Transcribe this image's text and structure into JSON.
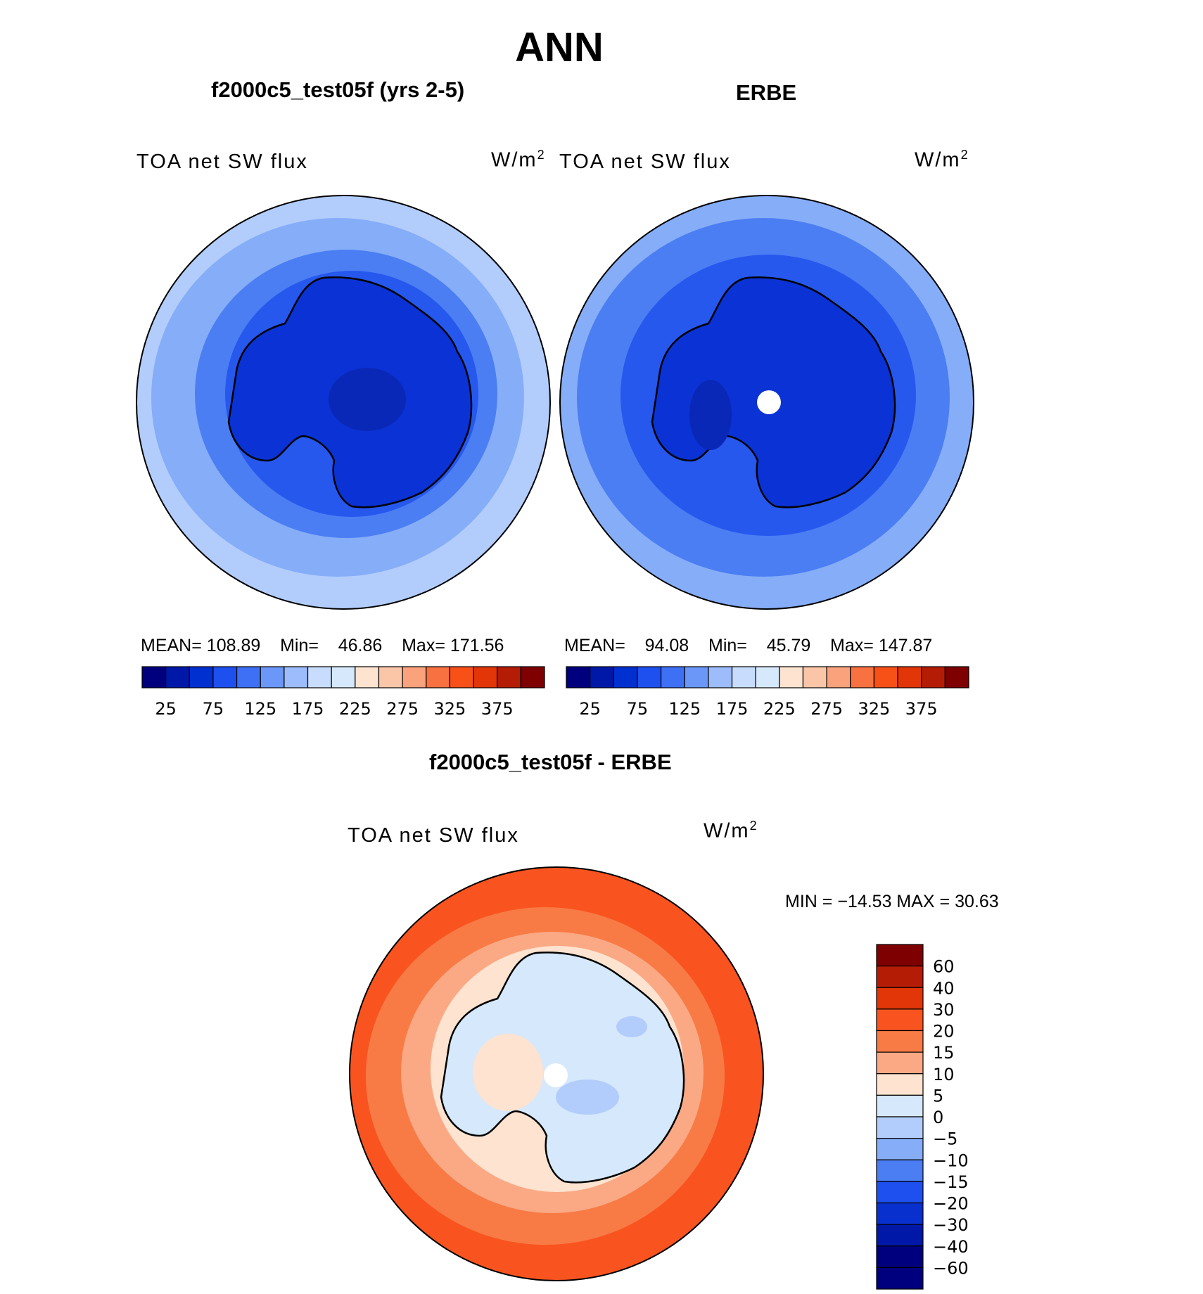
{
  "title": "ANN",
  "panels": {
    "left": {
      "title": "f2000c5_test05f (yrs 2-5)",
      "variable": "TOA net SW flux",
      "units": "W/m",
      "units_sup": "2",
      "stats": {
        "mean_label": "MEAN=",
        "mean": "108.89",
        "min_label": "Min=",
        "min": "46.86",
        "max_label": "Max=",
        "max": "171.56"
      }
    },
    "right": {
      "title": "ERBE",
      "variable": "TOA net SW flux",
      "units": "W/m",
      "units_sup": "2",
      "stats": {
        "mean_label": "MEAN=",
        "mean": "94.08",
        "min_label": "Min=",
        "min": "45.79",
        "max_label": "Max=",
        "max": "147.87"
      }
    },
    "diff": {
      "title": "f2000c5_test05f - ERBE",
      "variable": "TOA net SW flux",
      "units": "W/m",
      "units_sup": "2",
      "stats_text": "MIN = −14.53 MAX =   30.63"
    }
  },
  "colorbar_top": {
    "colors": [
      "#00007f",
      "#0018a8",
      "#0030d0",
      "#1e50ef",
      "#3d70f5",
      "#6a97f8",
      "#9dbcfc",
      "#c8dcfd",
      "#d6e8fb",
      "#fde3d0",
      "#fbc6a8",
      "#f9a27c",
      "#f87140",
      "#f85118",
      "#e23508",
      "#b51c05",
      "#7f0000"
    ],
    "tick_labels": [
      "25",
      "75",
      "125",
      "175",
      "225",
      "275",
      "325",
      "375"
    ]
  },
  "colorbar_diff": {
    "colors": [
      "#7f0000",
      "#b51c05",
      "#e23508",
      "#f95420",
      "#f87b45",
      "#fba985",
      "#fde3d0",
      "#d6e8fb",
      "#b2cdfc",
      "#86adf8",
      "#4b7ef3",
      "#1e50ef",
      "#0830cf",
      "#0018a8",
      "#00007f"
    ],
    "tick_labels": [
      "60",
      "40",
      "30",
      "20",
      "15",
      "10",
      "5",
      "0",
      "−5",
      "−10",
      "−15",
      "−20",
      "−30",
      "−40",
      "−60"
    ]
  },
  "map_colors": {
    "abs_ring1": "#b2cdfc",
    "abs_ring2": "#86adf8",
    "abs_ring3": "#4b7ef3",
    "abs_ring4": "#2658ee",
    "abs_land": "#0a32d4",
    "abs_deep": "#0a28b8",
    "diff_outer": "#f95420",
    "diff_r2": "#f87b45",
    "diff_r3": "#fba985",
    "diff_r4": "#fde3d0",
    "diff_land": "#d6e8fb",
    "diff_neg": "#b2cdfc",
    "pole_hole": "#ffffff"
  }
}
